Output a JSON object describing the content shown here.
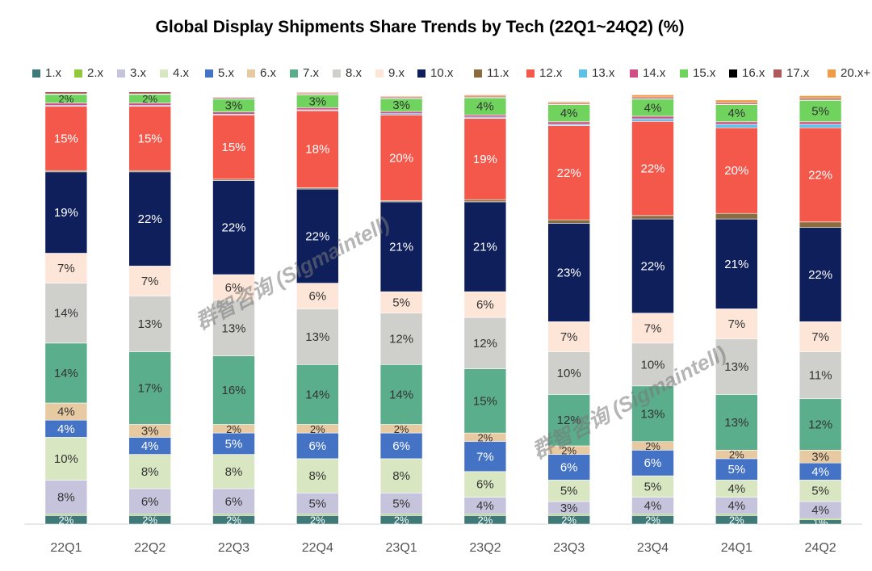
{
  "chart_data": {
    "type": "bar",
    "stacked": true,
    "title": "Global Display Shipments Share Trends by Tech (22Q1~24Q2) (%)",
    "xlabel": "",
    "ylabel": "",
    "ylim": [
      0,
      100
    ],
    "categories": [
      "22Q1",
      "22Q2",
      "22Q3",
      "22Q4",
      "23Q1",
      "23Q2",
      "23Q3",
      "23Q4",
      "24Q1",
      "24Q2"
    ],
    "series": [
      {
        "name": "1.x",
        "color": "#3f7a78",
        "values": [
          2,
          2,
          2,
          2,
          2,
          2,
          2,
          2,
          2,
          1
        ]
      },
      {
        "name": "2.x",
        "color": "#93c83b",
        "values": [
          0.3,
          0.3,
          0.3,
          0.3,
          0.3,
          0.3,
          0.3,
          0.3,
          0.3,
          0.3
        ]
      },
      {
        "name": "3.x",
        "color": "#c6c3dd",
        "values": [
          8,
          6,
          6,
          5,
          5,
          4,
          3,
          4,
          4,
          4
        ]
      },
      {
        "name": "4.x",
        "color": "#d9e6c2",
        "values": [
          10,
          8,
          8,
          8,
          8,
          6,
          5,
          5,
          4,
          5
        ]
      },
      {
        "name": "5.x",
        "color": "#4472c4",
        "values": [
          4,
          4,
          5,
          6,
          6,
          7,
          6,
          6,
          5,
          4
        ]
      },
      {
        "name": "6.x",
        "color": "#e7c9a2",
        "values": [
          4,
          3,
          2,
          2,
          2,
          2,
          2,
          2,
          2,
          3
        ]
      },
      {
        "name": "7.x",
        "color": "#5aae8c",
        "values": [
          14,
          17,
          16,
          14,
          14,
          15,
          12,
          13,
          13,
          12
        ]
      },
      {
        "name": "8.x",
        "color": "#cfcfcc",
        "values": [
          14,
          13,
          13,
          13,
          12,
          12,
          10,
          10,
          13,
          11
        ]
      },
      {
        "name": "9.x",
        "color": "#fde6d8",
        "values": [
          7,
          7,
          6,
          6,
          5,
          6,
          7,
          7,
          7,
          7
        ]
      },
      {
        "name": "10.x",
        "color": "#0f1f5c",
        "values": [
          19,
          22,
          22,
          22,
          21,
          21,
          23,
          22,
          21,
          22
        ]
      },
      {
        "name": "11.x",
        "color": "#8b6c3f",
        "values": [
          0.3,
          0.3,
          0.3,
          0.3,
          0.3,
          0.5,
          0.8,
          0.8,
          1.3,
          1.3
        ]
      },
      {
        "name": "12.x",
        "color": "#f4584b",
        "values": [
          15,
          15,
          15,
          18,
          20,
          19,
          22,
          22,
          20,
          22
        ]
      },
      {
        "name": "13.x",
        "color": "#5bc1eb",
        "values": [
          0.2,
          0.2,
          0.2,
          0.2,
          0.3,
          0.3,
          0.3,
          0.6,
          0.8,
          0.8
        ]
      },
      {
        "name": "14.x",
        "color": "#d14f86",
        "values": [
          0.6,
          0.6,
          0.5,
          0.5,
          0.5,
          0.5,
          0.6,
          0.6,
          0.6,
          0.6
        ]
      },
      {
        "name": "15.x",
        "color": "#6fd35d",
        "values": [
          2,
          2,
          3,
          3,
          3,
          4,
          4,
          4,
          4,
          5
        ]
      },
      {
        "name": "16.x",
        "color": "#000000",
        "values": [
          0.1,
          0.1,
          0.1,
          0.1,
          0.1,
          0.1,
          0.1,
          0.1,
          0.1,
          0.1
        ]
      },
      {
        "name": "17.x",
        "color": "#b0595d",
        "values": [
          0.5,
          0.5,
          0.3,
          0.3,
          0.3,
          0.3,
          0.3,
          0.4,
          0.4,
          0.4
        ]
      },
      {
        "name": "20.x+",
        "color": "#f29b45",
        "values": [
          0,
          0,
          0,
          0.2,
          0.2,
          0.3,
          0.3,
          0.5,
          0.6,
          0.6
        ]
      }
    ],
    "data_labels": [
      {
        "series": "1.x",
        "labels": [
          "2%",
          "2%",
          "2%",
          "2%",
          "2%",
          "2%",
          "2%",
          "2%",
          "2%",
          "1%"
        ]
      },
      {
        "series": "3.x",
        "labels": [
          "8%",
          "6%",
          "6%",
          "5%",
          "5%",
          "4%",
          "3%",
          "4%",
          "4%",
          "4%"
        ]
      },
      {
        "series": "4.x",
        "labels": [
          "10%",
          "8%",
          "8%",
          "8%",
          "8%",
          "6%",
          "5%",
          "5%",
          "4%",
          "5%"
        ]
      },
      {
        "series": "5.x",
        "labels": [
          "4%",
          "4%",
          "5%",
          "6%",
          "6%",
          "7%",
          "6%",
          "6%",
          "5%",
          "4%"
        ]
      },
      {
        "series": "6.x",
        "labels": [
          "4%",
          "3%",
          "2%",
          "2%",
          "2%",
          "2%",
          "2%",
          "2%",
          "2%",
          "3%"
        ]
      },
      {
        "series": "7.x",
        "labels": [
          "14%",
          "17%",
          "16%",
          "14%",
          "14%",
          "15%",
          "12%",
          "13%",
          "13%",
          "12%"
        ]
      },
      {
        "series": "8.x",
        "labels": [
          "14%",
          "13%",
          "13%",
          "13%",
          "12%",
          "12%",
          "10%",
          "10%",
          "13%",
          "11%"
        ]
      },
      {
        "series": "9.x",
        "labels": [
          "7%",
          "7%",
          "6%",
          "6%",
          "5%",
          "6%",
          "7%",
          "7%",
          "7%",
          "7%"
        ]
      },
      {
        "series": "10.x",
        "labels": [
          "19%",
          "22%",
          "22%",
          "22%",
          "21%",
          "21%",
          "23%",
          "22%",
          "21%",
          "22%"
        ]
      },
      {
        "series": "12.x",
        "labels": [
          "15%",
          "15%",
          "15%",
          "18%",
          "20%",
          "19%",
          "22%",
          "22%",
          "20%",
          "22%"
        ]
      },
      {
        "series": "15.x",
        "labels": [
          "2%",
          "2%",
          "3%",
          "3%",
          "3%",
          "4%",
          "4%",
          "4%",
          "4%",
          "5%"
        ]
      }
    ],
    "legend_position": "top",
    "watermark": "群智咨询 (Sigmaintell)"
  }
}
